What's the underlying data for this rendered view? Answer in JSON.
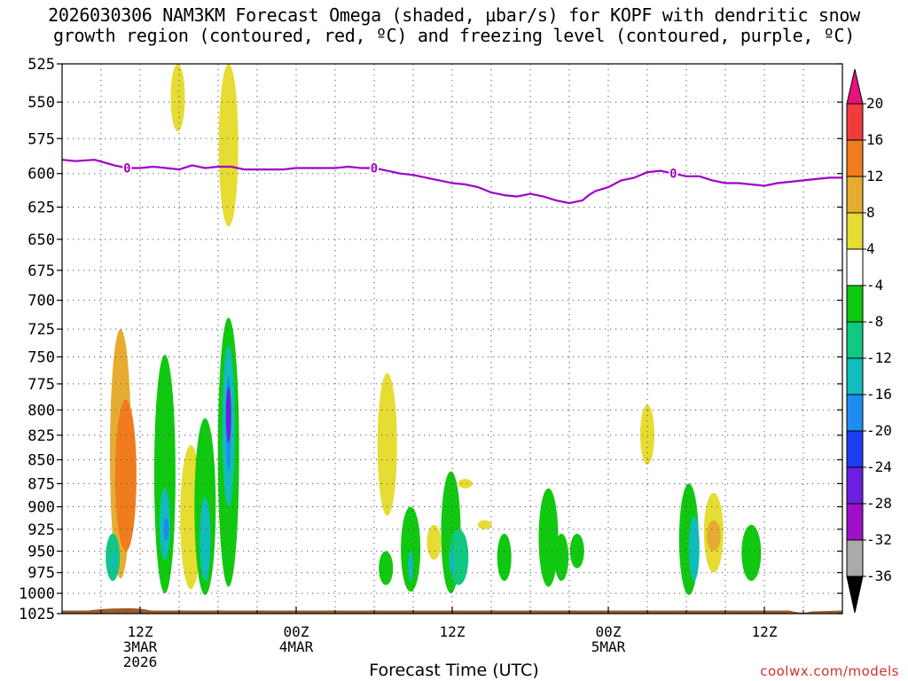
{
  "chart_data": {
    "type": "heatmap",
    "title_line1": "2026030306 NAM3KM Forecast Omega (shaded, μbar/s) for KOPF with dendritic snow",
    "title_line2": "growth region (contoured, red, ºC) and freezing level (contoured, purple, ºC)",
    "xlabel": "Forecast Time (UTC)",
    "ylabel": "",
    "credit": "coolwx.com/models",
    "x_unit": "forecast hour",
    "xlim": [
      0,
      60
    ],
    "ylim_hpa": [
      1025,
      525
    ],
    "y_ticks": [
      "525",
      "550",
      "575",
      "600",
      "625",
      "650",
      "675",
      "700",
      "725",
      "750",
      "775",
      "800",
      "825",
      "850",
      "875",
      "900",
      "925",
      "950",
      "975",
      "1000",
      "1025"
    ],
    "x_ticks": [
      {
        "hour": 6,
        "line1": "12Z",
        "line2": "3MAR",
        "line3": "2026"
      },
      {
        "hour": 18,
        "line1": "00Z",
        "line2": "4MAR",
        "line3": ""
      },
      {
        "hour": 30,
        "line1": "12Z",
        "line2": "",
        "line3": ""
      },
      {
        "hour": 42,
        "line1": "00Z",
        "line2": "5MAR",
        "line3": ""
      },
      {
        "hour": 54,
        "line1": "12Z",
        "line2": "",
        "line3": ""
      }
    ],
    "colorbar": {
      "labels": [
        "20",
        "16",
        "12",
        "8",
        "4",
        "-4",
        "-8",
        "-12",
        "-16",
        "-20",
        "-24",
        "-28",
        "-32",
        "-36"
      ],
      "colors": [
        "#e8127a",
        "#f03c3c",
        "#f07c1e",
        "#e6ac32",
        "#e6dc32",
        "#ffffff",
        "#10c810",
        "#10c880",
        "#10bcbc",
        "#1e8cf0",
        "#1e3cf0",
        "#6e1ee0",
        "#a010c8",
        "#aaaaaa",
        "#000000"
      ]
    },
    "freezing_level": {
      "label": "0",
      "color": "#a000c8",
      "hours": [
        0,
        1,
        2.5,
        4,
        5,
        6,
        7,
        8,
        9,
        10,
        11,
        12,
        13,
        14,
        15,
        16,
        17,
        18,
        19,
        20,
        21,
        22,
        23,
        24,
        25,
        26,
        27,
        28,
        29,
        30,
        31,
        32,
        33,
        34,
        35,
        36,
        37,
        38,
        39,
        40,
        40.5,
        41,
        42,
        43,
        44,
        45,
        46,
        47,
        48,
        49,
        50,
        51,
        52,
        53,
        54,
        55,
        56,
        57,
        58,
        59,
        60
      ],
      "hpa": [
        590,
        591,
        590,
        594,
        596,
        596,
        595,
        596,
        597,
        594,
        596,
        595,
        595,
        597,
        597,
        597,
        597,
        596,
        596,
        596,
        596,
        595,
        596,
        596,
        598,
        600,
        601,
        603,
        605,
        607,
        608,
        610,
        614,
        616,
        617,
        615,
        617,
        620,
        622,
        620,
        616,
        613,
        610,
        605,
        603,
        599,
        598,
        600,
        602,
        602,
        605,
        607,
        607,
        608,
        609,
        607,
        606,
        605,
        604,
        603,
        603
      ],
      "label_hours": [
        5,
        24,
        47
      ]
    },
    "ground": {
      "top_hpa": 1020,
      "color": "#9a5a2a"
    },
    "omega_blobs": [
      {
        "hour": 4.5,
        "hpa_top": 725,
        "hpa_bottom": 982,
        "value": 8
      },
      {
        "hour": 4.9,
        "hpa_top": 790,
        "hpa_bottom": 950,
        "value": 12
      },
      {
        "hour": 3.9,
        "hpa_top": 930,
        "hpa_bottom": 985,
        "value": -10
      },
      {
        "hour": 3.9,
        "hpa_top": 948,
        "hpa_bottom": 975,
        "value": -14
      },
      {
        "hour": 7.9,
        "hpa_top": 748,
        "hpa_bottom": 1000,
        "value": -6
      },
      {
        "hour": 7.9,
        "hpa_top": 880,
        "hpa_bottom": 960,
        "value": -12
      },
      {
        "hour": 8,
        "hpa_top": 912,
        "hpa_bottom": 938,
        "value": -18
      },
      {
        "hour": 9.9,
        "hpa_top": 835,
        "hpa_bottom": 995,
        "value": 5
      },
      {
        "hour": 11,
        "hpa_top": 808,
        "hpa_bottom": 1002,
        "value": -6
      },
      {
        "hour": 11,
        "hpa_top": 890,
        "hpa_bottom": 985,
        "value": -12
      },
      {
        "hour": 12.8,
        "hpa_top": 715,
        "hpa_bottom": 992,
        "value": -6
      },
      {
        "hour": 12.8,
        "hpa_top": 740,
        "hpa_bottom": 900,
        "value": -12
      },
      {
        "hour": 12.8,
        "hpa_top": 768,
        "hpa_bottom": 862,
        "value": -18
      },
      {
        "hour": 12.8,
        "hpa_top": 778,
        "hpa_bottom": 832,
        "value": -26
      },
      {
        "hour": 12.8,
        "hpa_top": 525,
        "hpa_bottom": 640,
        "value": 5
      },
      {
        "hour": 8.9,
        "hpa_top": 525,
        "hpa_bottom": 570,
        "value": 5
      },
      {
        "hour": 25,
        "hpa_top": 765,
        "hpa_bottom": 910,
        "value": 5
      },
      {
        "hour": 24.9,
        "hpa_top": 950,
        "hpa_bottom": 990,
        "value": -6
      },
      {
        "hour": 26.8,
        "hpa_top": 900,
        "hpa_bottom": 998,
        "value": -6
      },
      {
        "hour": 26.8,
        "hpa_top": 950,
        "hpa_bottom": 985,
        "value": -12
      },
      {
        "hour": 28.6,
        "hpa_top": 920,
        "hpa_bottom": 960,
        "value": 5
      },
      {
        "hour": 29.9,
        "hpa_top": 862,
        "hpa_bottom": 1000,
        "value": -6
      },
      {
        "hour": 30.5,
        "hpa_top": 925,
        "hpa_bottom": 990,
        "value": -10
      },
      {
        "hour": 30,
        "hpa_top": 950,
        "hpa_bottom": 975,
        "value": -14
      },
      {
        "hour": 31,
        "hpa_top": 870,
        "hpa_bottom": 880,
        "value": 5
      },
      {
        "hour": 32.5,
        "hpa_top": 915,
        "hpa_bottom": 925,
        "value": 5
      },
      {
        "hour": 34,
        "hpa_top": 930,
        "hpa_bottom": 985,
        "value": -6
      },
      {
        "hour": 37.4,
        "hpa_top": 880,
        "hpa_bottom": 992,
        "value": -6
      },
      {
        "hour": 38.4,
        "hpa_top": 930,
        "hpa_bottom": 985,
        "value": -6
      },
      {
        "hour": 39.6,
        "hpa_top": 930,
        "hpa_bottom": 970,
        "value": -6
      },
      {
        "hour": 45,
        "hpa_top": 795,
        "hpa_bottom": 855,
        "value": 5
      },
      {
        "hour": 48.2,
        "hpa_top": 875,
        "hpa_bottom": 1002,
        "value": -6
      },
      {
        "hour": 48.6,
        "hpa_top": 910,
        "hpa_bottom": 985,
        "value": -12
      },
      {
        "hour": 50.1,
        "hpa_top": 885,
        "hpa_bottom": 975,
        "value": 5
      },
      {
        "hour": 50.1,
        "hpa_top": 915,
        "hpa_bottom": 950,
        "value": 10
      },
      {
        "hour": 53,
        "hpa_top": 920,
        "hpa_bottom": 985,
        "value": -6
      }
    ]
  }
}
